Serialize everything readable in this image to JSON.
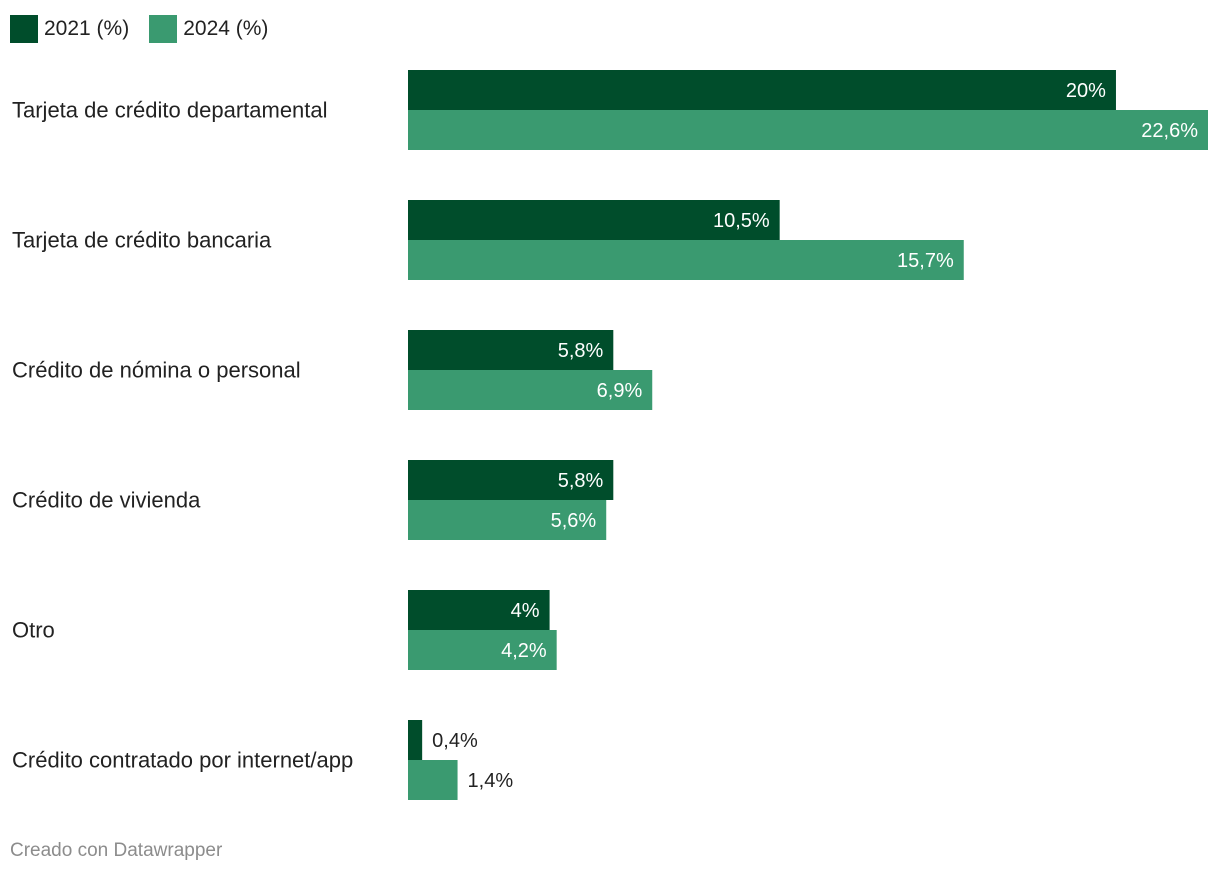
{
  "chart_data": {
    "type": "bar",
    "orientation": "horizontal",
    "categories": [
      "Tarjeta de crédito departamental",
      "Tarjeta de crédito bancaria",
      "Crédito de nómina o personal",
      "Crédito de vivienda",
      "Otro",
      "Crédito contratado por internet/app"
    ],
    "series": [
      {
        "name": "2021 (%)",
        "color": "#004d2b",
        "values": [
          20,
          10.5,
          5.8,
          5.8,
          4,
          0.4
        ],
        "labels": [
          "20%",
          "10,5%",
          "5,8%",
          "5,8%",
          "4%",
          "0,4%"
        ]
      },
      {
        "name": "2024 (%)",
        "color": "#3a9a70",
        "values": [
          22.6,
          15.7,
          6.9,
          5.6,
          4.2,
          1.4
        ],
        "labels": [
          "22,6%",
          "15,7%",
          "6,9%",
          "5,6%",
          "4,2%",
          "1,4%"
        ]
      }
    ],
    "xlim": [
      0,
      22.6
    ],
    "grid": false,
    "legend": "top-left"
  },
  "footer": {
    "credit": "Creado con Datawrapper"
  }
}
